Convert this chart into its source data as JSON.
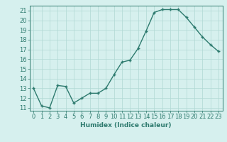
{
  "x": [
    0,
    1,
    2,
    3,
    4,
    5,
    6,
    7,
    8,
    9,
    10,
    11,
    12,
    13,
    14,
    15,
    16,
    17,
    18,
    19,
    20,
    21,
    22,
    23
  ],
  "y": [
    13,
    11.2,
    11,
    13.3,
    13.2,
    11.5,
    12,
    12.5,
    12.5,
    13,
    14.4,
    15.7,
    15.9,
    17.1,
    18.9,
    20.8,
    21.1,
    21.1,
    21.1,
    20.3,
    19.3,
    18.3,
    17.5,
    16.8
  ],
  "line_color": "#2d7a6e",
  "marker": "+",
  "bg_color": "#d6f0ee",
  "grid_color": "#b0d8d4",
  "xlabel": "Humidex (Indice chaleur)",
  "ylim": [
    10.7,
    21.5
  ],
  "xlim": [
    -0.5,
    23.5
  ],
  "yticks": [
    11,
    12,
    13,
    14,
    15,
    16,
    17,
    18,
    19,
    20,
    21
  ],
  "xticks": [
    0,
    1,
    2,
    3,
    4,
    5,
    6,
    7,
    8,
    9,
    10,
    11,
    12,
    13,
    14,
    15,
    16,
    17,
    18,
    19,
    20,
    21,
    22,
    23
  ],
  "label_fontsize": 6.5,
  "tick_fontsize": 6.0,
  "line_width": 1.0,
  "marker_size": 3.5,
  "marker_edge_width": 1.0
}
